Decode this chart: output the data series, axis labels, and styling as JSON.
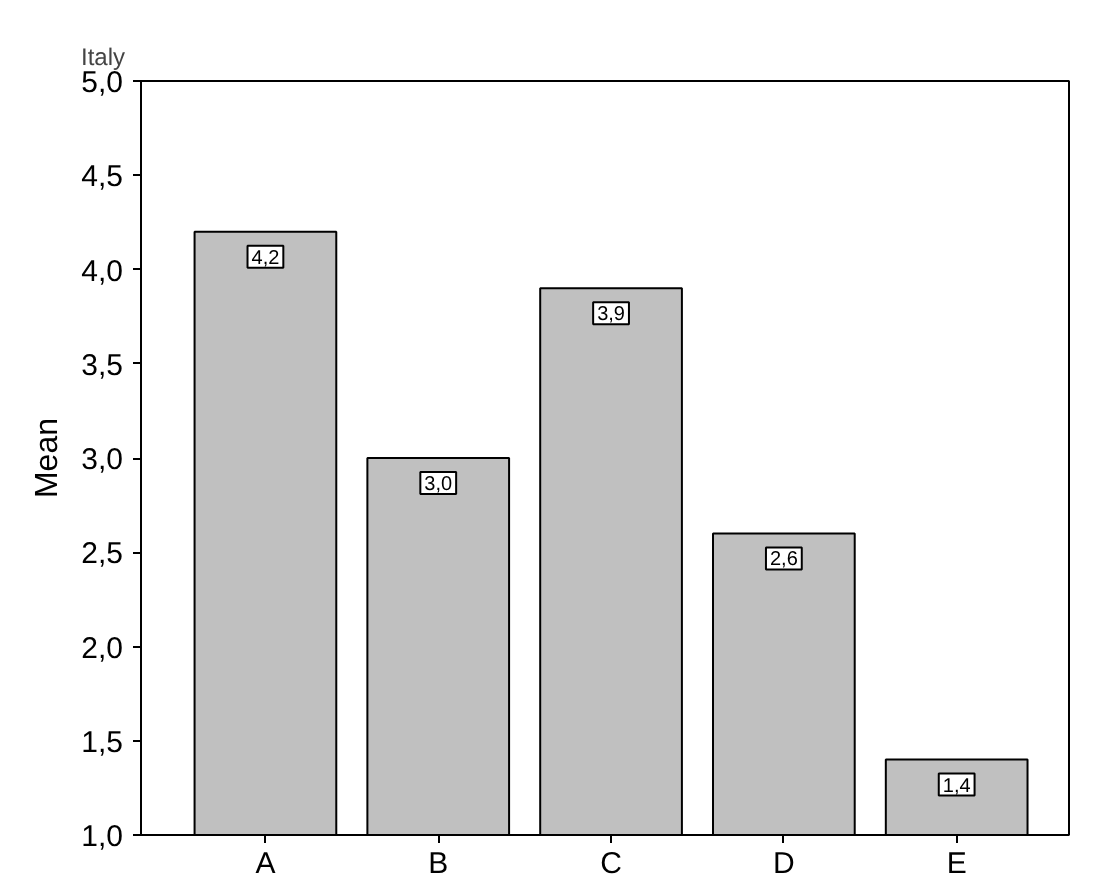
{
  "chart_data": {
    "type": "bar",
    "title": "Italy",
    "ylabel": "Mean",
    "categories": [
      "A",
      "B",
      "C",
      "D",
      "E"
    ],
    "values": [
      4.2,
      3.0,
      3.9,
      2.6,
      1.4
    ],
    "value_labels": [
      "4,2",
      "3,0",
      "3,9",
      "2,6",
      "1,4"
    ],
    "color": "#c0c0c0",
    "ylim": [
      1,
      5
    ],
    "yticks": [
      {
        "value": 1,
        "label": "1,0"
      },
      {
        "value": 1.5,
        "label": "1,5"
      },
      {
        "value": 2,
        "label": "2,0"
      },
      {
        "value": 2.5,
        "label": "2,5"
      },
      {
        "value": 3,
        "label": "3,0"
      },
      {
        "value": 3.5,
        "label": "3,5"
      },
      {
        "value": 4,
        "label": "4,0"
      },
      {
        "value": 4.5,
        "label": "4,5"
      },
      {
        "value": 5,
        "label": "5,0"
      }
    ],
    "grid": false
  }
}
